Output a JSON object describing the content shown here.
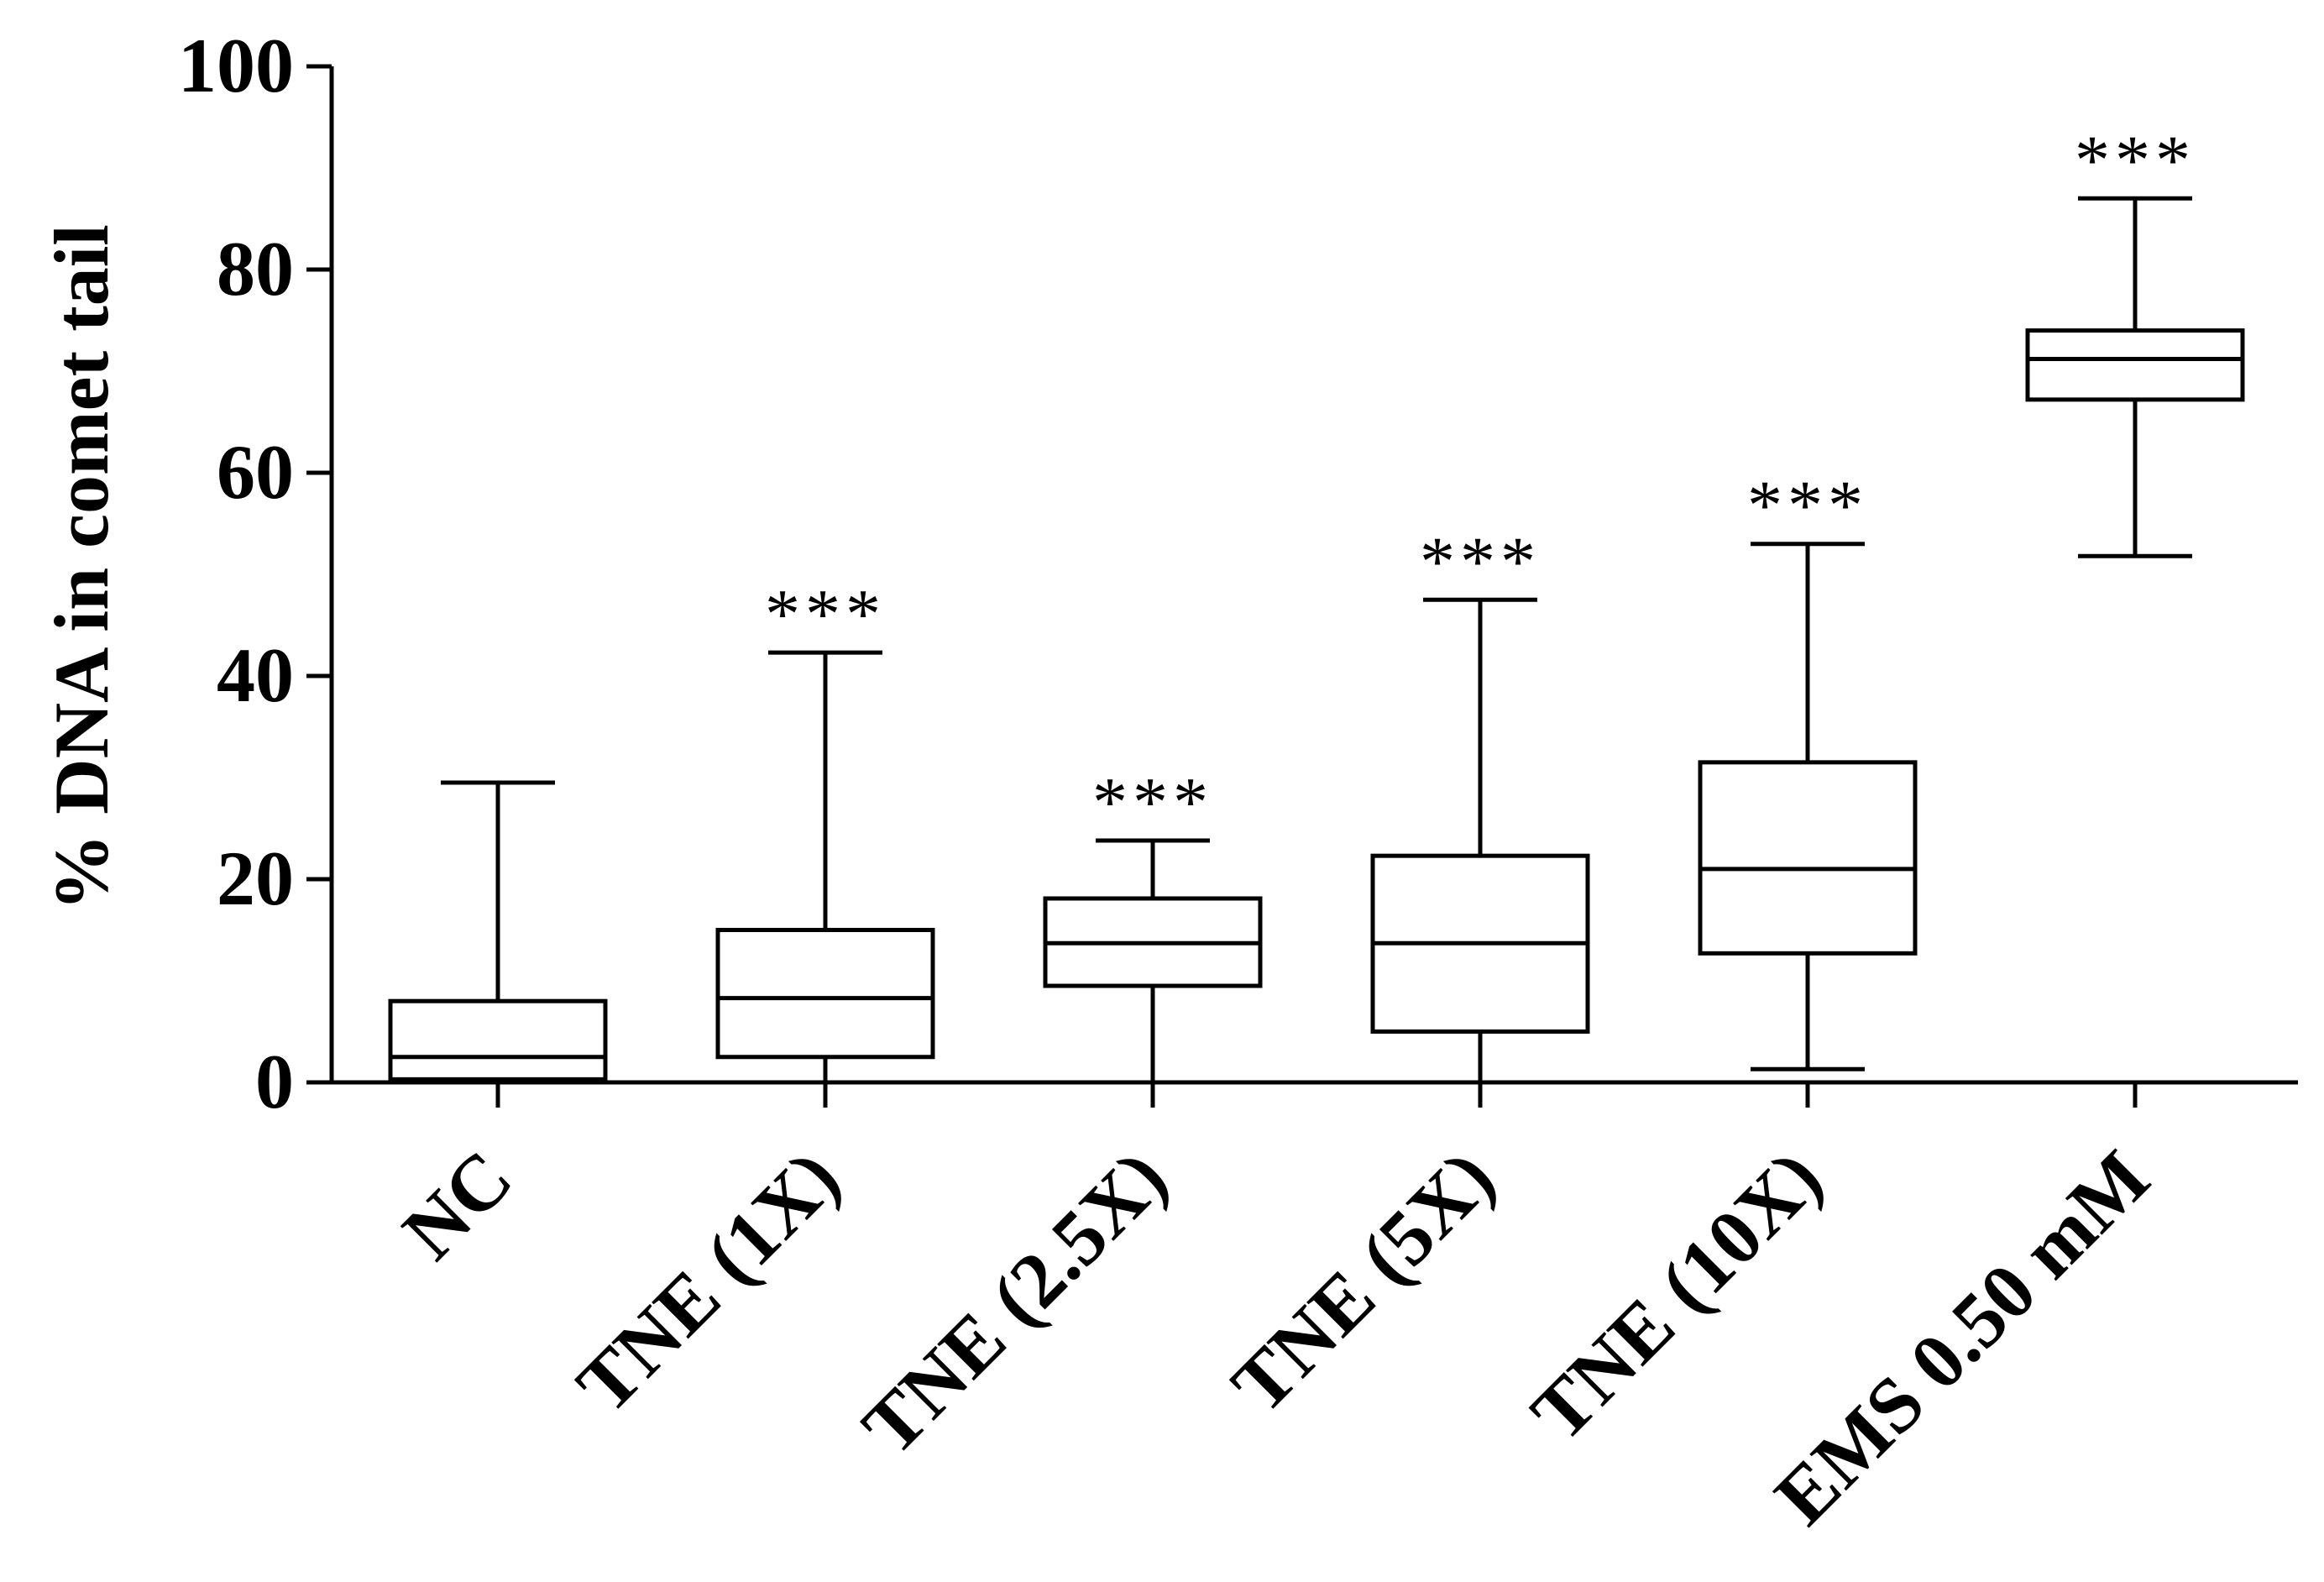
{
  "chart_data": {
    "type": "boxplot",
    "title": "",
    "xlabel": "",
    "ylabel": "% DNA in comet tail",
    "ylim": [
      0,
      100
    ],
    "yticks": [
      0,
      20,
      40,
      60,
      80,
      100
    ],
    "categories": [
      "NC",
      "TNE (1X)",
      "TNE (2.5X)",
      "TNE (5X)",
      "TNE (10X)",
      "EMS 0.50 mM"
    ],
    "boxes": [
      {
        "label": "NC",
        "min": 0,
        "q1": 0.3,
        "median": 2.5,
        "q3": 8,
        "max": 29.5,
        "significance": ""
      },
      {
        "label": "TNE (1X)",
        "min": 0,
        "q1": 2.5,
        "median": 8.3,
        "q3": 15,
        "max": 42.3,
        "significance": "***"
      },
      {
        "label": "TNE (2.5X)",
        "min": 0,
        "q1": 9.5,
        "median": 13.7,
        "q3": 18.1,
        "max": 23.8,
        "significance": "***"
      },
      {
        "label": "TNE (5X)",
        "min": 0,
        "q1": 5,
        "median": 13.7,
        "q3": 22.3,
        "max": 47.5,
        "significance": "***"
      },
      {
        "label": "TNE (10X)",
        "min": 1.3,
        "q1": 12.7,
        "median": 21,
        "q3": 31.5,
        "max": 53,
        "significance": "***"
      },
      {
        "label": "EMS 0.50 mM",
        "min": 51.8,
        "q1": 67.2,
        "median": 71.2,
        "q3": 74,
        "max": 87,
        "significance": "***"
      }
    ]
  }
}
